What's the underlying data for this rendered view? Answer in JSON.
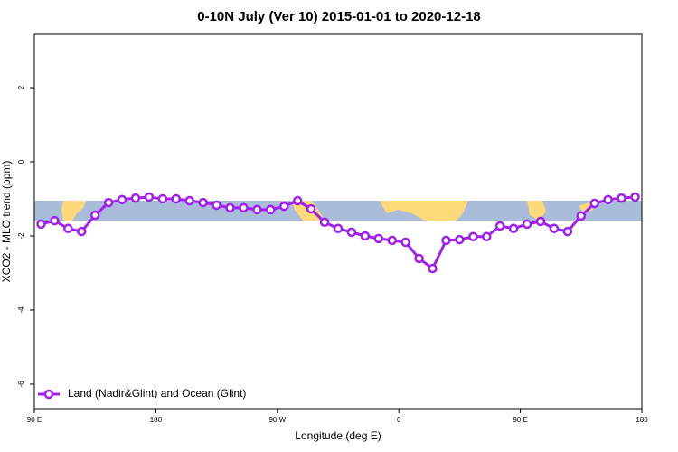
{
  "chart_data": {
    "type": "line",
    "title": "0-10N July (Ver 10)   2015-01-01 to 2020-12-18",
    "x_label": "Longitude (deg E)",
    "y_label": "XCO2 - MLO trend (ppm)",
    "x": [
      95,
      105,
      115,
      125,
      135,
      145,
      155,
      165,
      175,
      185,
      195,
      205,
      215,
      225,
      235,
      245,
      255,
      265,
      275,
      285,
      295,
      305,
      315,
      325,
      335,
      345,
      355,
      365,
      375,
      385,
      395,
      405,
      415,
      425,
      435,
      445,
      455,
      465,
      475,
      485,
      495,
      505,
      515,
      525,
      535
    ],
    "series": [
      {
        "name": "Land (Nadir&Glint) and Ocean (Glint)",
        "color": "#a020f0",
        "values": [
          -1.68,
          -1.59,
          -1.8,
          -1.88,
          -1.44,
          -1.1,
          -1.02,
          -0.98,
          -0.95,
          -1.0,
          -1.0,
          -1.05,
          -1.1,
          -1.17,
          -1.24,
          -1.24,
          -1.29,
          -1.29,
          -1.2,
          -1.05,
          -1.27,
          -1.63,
          -1.8,
          -1.9,
          -2.0,
          -2.07,
          -2.12,
          -2.17,
          -2.61,
          -2.88,
          -2.12,
          -2.1,
          -2.02,
          -2.02,
          -1.73,
          -1.8,
          -1.68,
          -1.61,
          -1.8,
          -1.88,
          -1.46,
          -1.12,
          -1.02,
          -0.98,
          -0.95
        ]
      }
    ],
    "xlim": [
      90,
      540
    ],
    "xticks": [
      {
        "value": 90,
        "label": "90 E"
      },
      {
        "value": 180,
        "label": "180"
      },
      {
        "value": 270,
        "label": "90 W"
      },
      {
        "value": 360,
        "label": "0"
      },
      {
        "value": 450,
        "label": "90 E"
      },
      {
        "value": 540,
        "label": "180"
      }
    ],
    "ylim": [
      -6.66,
      3.44
    ],
    "yticks": [
      2,
      0,
      -2,
      -4,
      -6
    ],
    "legend": "bottom-left"
  }
}
